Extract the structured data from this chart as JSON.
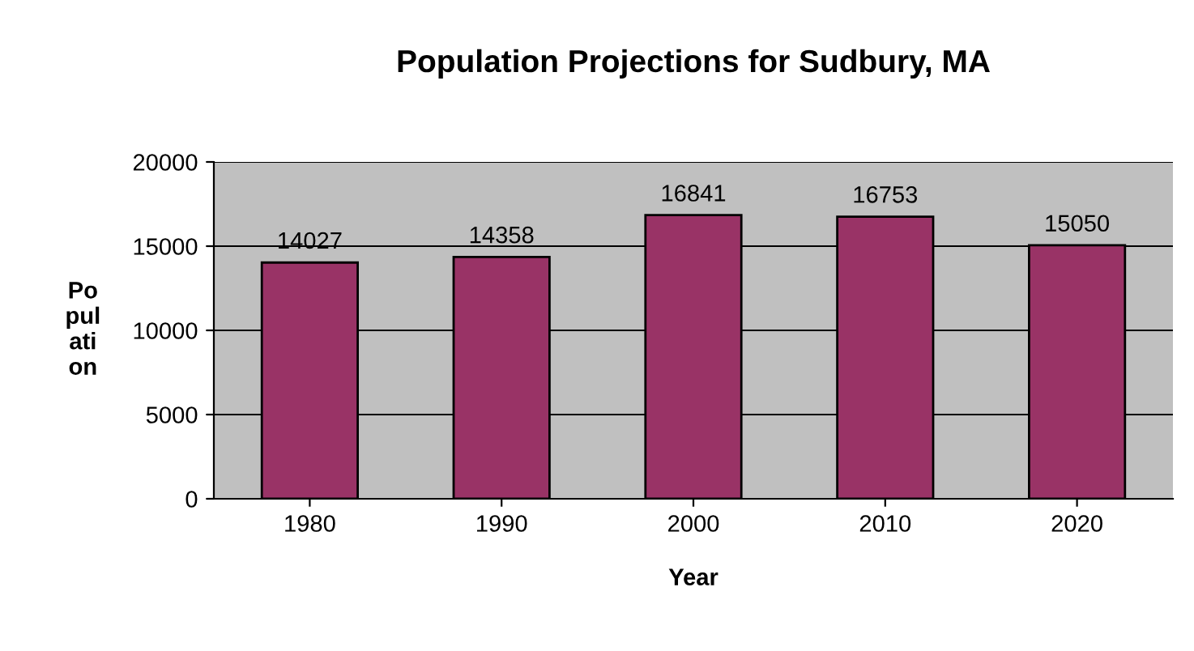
{
  "chart_data": {
    "type": "bar",
    "title": "Population Projections for Sudbury, MA",
    "xlabel": "Year",
    "ylabel": "Po\npul\nati\non",
    "categories": [
      "1980",
      "1990",
      "2000",
      "2010",
      "2020"
    ],
    "values": [
      14027,
      14358,
      16841,
      16753,
      15050
    ],
    "color": "#993366",
    "ylim": [
      0,
      20000
    ],
    "yticks": [
      0,
      5000,
      10000,
      15000,
      20000
    ],
    "grid": "y",
    "data_labels": true,
    "legend": false
  }
}
